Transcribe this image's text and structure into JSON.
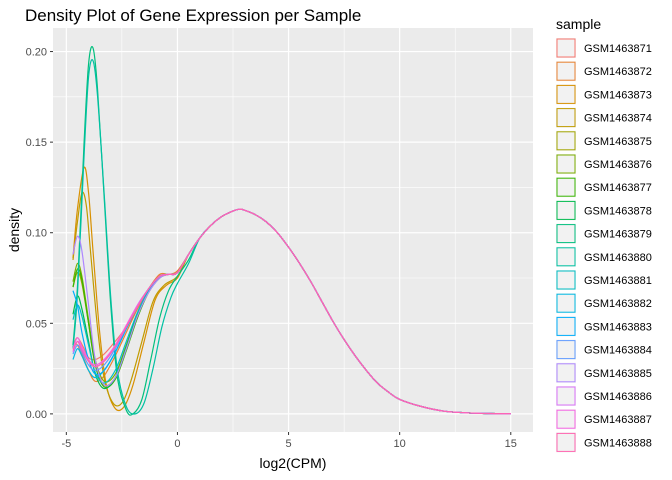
{
  "chart_data": {
    "type": "line",
    "title": "Density Plot of Gene Expression per Sample",
    "xlabel": "log2(CPM)",
    "ylabel": "density",
    "xlim": [
      -5.6,
      16.0
    ],
    "ylim": [
      -0.01,
      0.213
    ],
    "x_ticks": [
      -5,
      0,
      5,
      10,
      15
    ],
    "x_tick_labels": [
      "-5",
      "0",
      "5",
      "10",
      "15"
    ],
    "y_ticks": [
      0.0,
      0.05,
      0.1,
      0.15,
      0.2
    ],
    "y_tick_labels": [
      "0.00",
      "0.05",
      "0.10",
      "0.15",
      "0.20"
    ],
    "grid": true,
    "legend": {
      "title": "sample",
      "position": "right"
    },
    "tail": {
      "x": [
        0.0,
        0.5,
        1.0,
        1.5,
        2.0,
        2.5,
        2.8,
        3.0,
        3.5,
        4.0,
        4.5,
        5.0,
        5.5,
        6.0,
        6.5,
        7.0,
        7.5,
        8.0,
        8.5,
        9.0,
        9.5,
        10.0,
        11.0,
        12.0,
        13.0,
        14.0,
        15.0
      ],
      "y": [
        0.079,
        0.088,
        0.097,
        0.104,
        0.109,
        0.112,
        0.113,
        0.1125,
        0.11,
        0.106,
        0.1,
        0.092,
        0.083,
        0.073,
        0.062,
        0.051,
        0.041,
        0.032,
        0.024,
        0.017,
        0.012,
        0.008,
        0.004,
        0.0015,
        0.0006,
        0.0002,
        0.0001
      ]
    },
    "series": [
      {
        "name": "GSM1463871",
        "color": "#F8766D",
        "x": [
          -4.7,
          -4.5,
          -4.2,
          -4.0,
          -3.7,
          -3.3,
          -2.8,
          -2.3,
          -1.8,
          -1.3,
          -0.8,
          -0.4,
          0.0
        ],
        "y": [
          0.037,
          0.042,
          0.036,
          0.031,
          0.03,
          0.033,
          0.04,
          0.048,
          0.058,
          0.068,
          0.076,
          0.077,
          0.078
        ]
      },
      {
        "name": "GSM1463872",
        "color": "#EA8331",
        "x": [
          -4.7,
          -4.5,
          -4.3,
          -4.0,
          -3.7,
          -3.3,
          -2.8,
          -2.3,
          -1.8,
          -1.3,
          -0.8,
          -0.4,
          0.0
        ],
        "y": [
          0.04,
          0.038,
          0.033,
          0.024,
          0.018,
          0.021,
          0.032,
          0.045,
          0.058,
          0.069,
          0.077,
          0.077,
          0.079
        ]
      },
      {
        "name": "GSM1463873",
        "color": "#D89000",
        "x": [
          -4.7,
          -4.5,
          -4.2,
          -4.0,
          -3.8,
          -3.5,
          -3.2,
          -2.8,
          -2.4,
          -2.0,
          -1.5,
          -1.0,
          -0.5,
          0.0
        ],
        "y": [
          0.086,
          0.113,
          0.136,
          0.122,
          0.09,
          0.045,
          0.016,
          0.003,
          0.004,
          0.016,
          0.04,
          0.063,
          0.071,
          0.075
        ]
      },
      {
        "name": "GSM1463874",
        "color": "#C09B00",
        "x": [
          -4.7,
          -4.5,
          -4.3,
          -4.1,
          -3.9,
          -3.6,
          -3.3,
          -2.9,
          -2.5,
          -2.1,
          -1.6,
          -1.1,
          -0.6,
          0.0
        ],
        "y": [
          0.085,
          0.106,
          0.122,
          0.115,
          0.088,
          0.048,
          0.02,
          0.006,
          0.006,
          0.018,
          0.04,
          0.062,
          0.071,
          0.076
        ]
      },
      {
        "name": "GSM1463875",
        "color": "#A3A500",
        "x": [
          -4.7,
          -4.5,
          -4.3,
          -4.0,
          -3.7,
          -3.3,
          -2.8,
          -2.3,
          -1.8,
          -1.3,
          -0.8,
          -0.4,
          0.0
        ],
        "y": [
          0.07,
          0.078,
          0.072,
          0.05,
          0.028,
          0.016,
          0.02,
          0.036,
          0.054,
          0.068,
          0.076,
          0.077,
          0.078
        ]
      },
      {
        "name": "GSM1463876",
        "color": "#7CAE00",
        "x": [
          -4.7,
          -4.5,
          -4.3,
          -4.0,
          -3.7,
          -3.3,
          -2.8,
          -2.3,
          -1.8,
          -1.3,
          -0.8,
          -0.4,
          0.0
        ],
        "y": [
          0.073,
          0.083,
          0.076,
          0.052,
          0.03,
          0.018,
          0.022,
          0.038,
          0.055,
          0.068,
          0.076,
          0.077,
          0.078
        ]
      },
      {
        "name": "GSM1463877",
        "color": "#39B600",
        "x": [
          -4.7,
          -4.5,
          -4.3,
          -4.0,
          -3.7,
          -3.3,
          -2.8,
          -2.3,
          -1.8,
          -1.3,
          -0.8,
          -0.4,
          0.0
        ],
        "y": [
          0.07,
          0.08,
          0.074,
          0.05,
          0.027,
          0.015,
          0.019,
          0.035,
          0.053,
          0.067,
          0.075,
          0.077,
          0.078
        ]
      },
      {
        "name": "GSM1463878",
        "color": "#00BB4E",
        "x": [
          -4.7,
          -4.5,
          -4.3,
          -4.0,
          -3.7,
          -3.3,
          -2.8,
          -2.3,
          -1.8,
          -1.3,
          -0.8,
          -0.4,
          0.0
        ],
        "y": [
          0.055,
          0.065,
          0.058,
          0.04,
          0.022,
          0.014,
          0.02,
          0.037,
          0.055,
          0.068,
          0.076,
          0.077,
          0.078
        ]
      },
      {
        "name": "GSM1463879",
        "color": "#00BF7D",
        "x": [
          -4.7,
          -4.5,
          -4.2,
          -4.0,
          -3.8,
          -3.6,
          -3.3,
          -3.0,
          -2.7,
          -2.3,
          -2.0,
          -1.6,
          -1.2,
          -0.8,
          -0.4,
          0.0,
          0.5
        ],
        "y": [
          0.038,
          0.07,
          0.15,
          0.193,
          0.202,
          0.18,
          0.12,
          0.06,
          0.02,
          0.002,
          0.0,
          0.008,
          0.03,
          0.053,
          0.068,
          0.076,
          0.085
        ]
      },
      {
        "name": "GSM1463880",
        "color": "#00C1A3",
        "x": [
          -4.7,
          -4.5,
          -4.2,
          -4.0,
          -3.8,
          -3.6,
          -3.3,
          -3.0,
          -2.7,
          -2.3,
          -1.9,
          -1.5,
          -1.1,
          -0.7,
          -0.3,
          0.0,
          0.5
        ],
        "y": [
          0.036,
          0.066,
          0.143,
          0.186,
          0.195,
          0.176,
          0.122,
          0.064,
          0.024,
          0.004,
          0.0,
          0.006,
          0.025,
          0.048,
          0.064,
          0.072,
          0.083
        ]
      },
      {
        "name": "GSM1463881",
        "color": "#00BFC4",
        "x": [
          -4.7,
          -4.5,
          -4.3,
          -4.0,
          -3.7,
          -3.3,
          -2.8,
          -2.3,
          -1.8,
          -1.3,
          -0.8,
          -0.4,
          0.0
        ],
        "y": [
          0.052,
          0.06,
          0.054,
          0.038,
          0.023,
          0.017,
          0.024,
          0.04,
          0.056,
          0.068,
          0.076,
          0.077,
          0.078
        ]
      },
      {
        "name": "GSM1463882",
        "color": "#00B9E3",
        "x": [
          -4.7,
          -4.5,
          -4.3,
          -4.0,
          -3.7,
          -3.3,
          -2.8,
          -2.3,
          -1.8,
          -1.3,
          -0.8,
          -0.4,
          0.0
        ],
        "y": [
          0.03,
          0.036,
          0.032,
          0.024,
          0.02,
          0.024,
          0.034,
          0.047,
          0.059,
          0.069,
          0.076,
          0.077,
          0.078
        ]
      },
      {
        "name": "GSM1463883",
        "color": "#00ADFA",
        "x": [
          -4.7,
          -4.5,
          -4.3,
          -4.0,
          -3.7,
          -3.3,
          -2.8,
          -2.3,
          -1.8,
          -1.3,
          -0.8,
          -0.4,
          0.0
        ],
        "y": [
          0.068,
          0.06,
          0.045,
          0.03,
          0.022,
          0.024,
          0.034,
          0.047,
          0.059,
          0.069,
          0.076,
          0.077,
          0.078
        ]
      },
      {
        "name": "GSM1463884",
        "color": "#619CFF",
        "x": [
          -4.7,
          -4.5,
          -4.3,
          -4.0,
          -3.7,
          -3.3,
          -2.8,
          -2.3,
          -1.8,
          -1.3,
          -0.8,
          -0.4,
          0.0
        ],
        "y": [
          0.033,
          0.038,
          0.034,
          0.027,
          0.024,
          0.027,
          0.036,
          0.048,
          0.06,
          0.069,
          0.076,
          0.077,
          0.078
        ]
      },
      {
        "name": "GSM1463885",
        "color": "#AE87FF",
        "x": [
          -4.7,
          -4.5,
          -4.3,
          -4.0,
          -3.7,
          -3.3,
          -2.8,
          -2.3,
          -1.8,
          -1.3,
          -0.8,
          -0.4,
          0.0
        ],
        "y": [
          0.088,
          0.098,
          0.09,
          0.06,
          0.03,
          0.016,
          0.02,
          0.036,
          0.054,
          0.067,
          0.075,
          0.077,
          0.078
        ]
      },
      {
        "name": "GSM1463886",
        "color": "#DB72FB",
        "x": [
          -4.7,
          -4.5,
          -4.3,
          -4.0,
          -3.7,
          -3.3,
          -2.8,
          -2.3,
          -1.8,
          -1.3,
          -0.8,
          -0.4,
          0.0
        ],
        "y": [
          0.034,
          0.04,
          0.036,
          0.029,
          0.026,
          0.029,
          0.037,
          0.048,
          0.059,
          0.069,
          0.076,
          0.077,
          0.078
        ]
      },
      {
        "name": "GSM1463887",
        "color": "#F564E3",
        "x": [
          -4.7,
          -4.5,
          -4.3,
          -4.0,
          -3.7,
          -3.3,
          -2.8,
          -2.3,
          -1.8,
          -1.3,
          -0.8,
          -0.4,
          0.0
        ],
        "y": [
          0.036,
          0.042,
          0.037,
          0.03,
          0.027,
          0.03,
          0.038,
          0.049,
          0.06,
          0.069,
          0.076,
          0.077,
          0.078
        ]
      },
      {
        "name": "GSM1463888",
        "color": "#FF64B0",
        "x": [
          -4.7,
          -4.5,
          -4.3,
          -4.0,
          -3.7,
          -3.3,
          -2.8,
          -2.3,
          -1.8,
          -1.3,
          -0.8,
          -0.4,
          0.0
        ],
        "y": [
          0.035,
          0.04,
          0.035,
          0.029,
          0.026,
          0.029,
          0.037,
          0.048,
          0.059,
          0.069,
          0.076,
          0.077,
          0.078
        ]
      }
    ]
  }
}
